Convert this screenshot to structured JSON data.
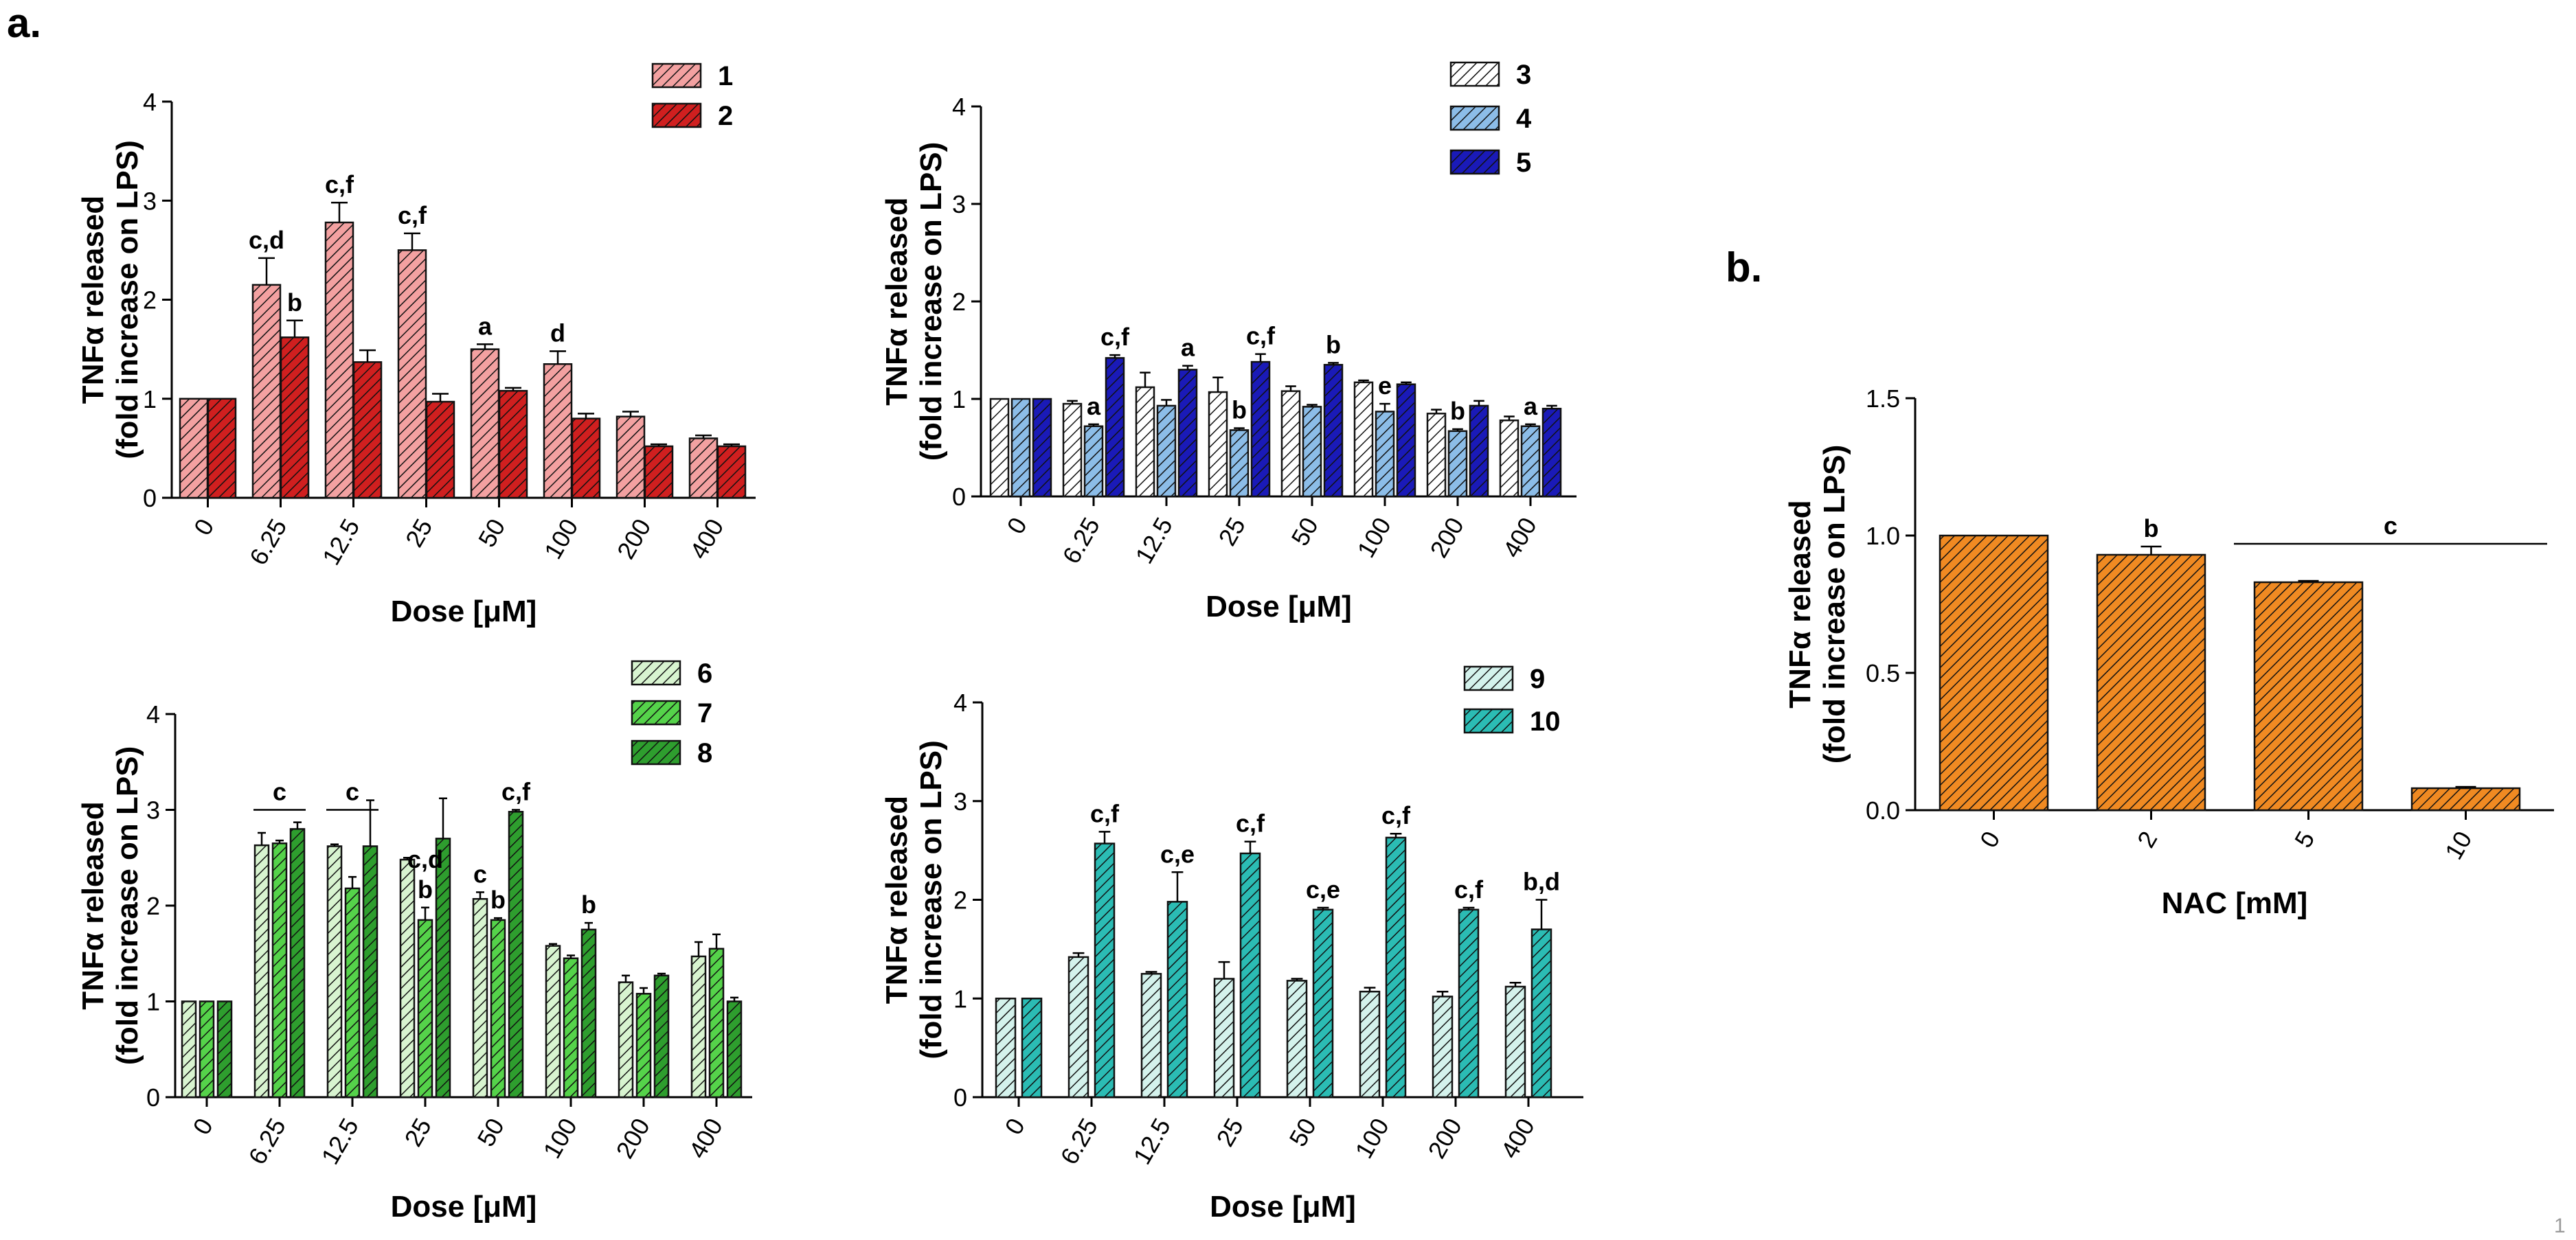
{
  "figure": {
    "panel_a_label": "a.",
    "panel_b_label": "b.",
    "page_number": "1",
    "colors": {
      "c1": "#f3a1a1",
      "c2": "#d01f1f",
      "c3": "#ffffff",
      "c4": "#8cbde8",
      "c5": "#1a1ab8",
      "c6": "#d8f4d0",
      "c7": "#55d34a",
      "c8": "#2e9e2e",
      "c9": "#d4f2ec",
      "c10": "#2bbcb4",
      "nac": "#f08a22"
    }
  },
  "chart_data": [
    {
      "type": "bar",
      "id": "a1",
      "title": "",
      "ylabel_line1": "TNFα released",
      "ylabel_line2": "(fold increase on LPS)",
      "xlabel": "Dose [μM]",
      "ylim": [
        0,
        4
      ],
      "yticks": [
        "0",
        "1",
        "2",
        "3",
        "4"
      ],
      "categories": [
        "0",
        "6.25",
        "12.5",
        "25",
        "50",
        "100",
        "200",
        "400"
      ],
      "series": [
        {
          "name": "1",
          "color": "#f3a1a1",
          "values": [
            1.0,
            2.15,
            2.78,
            2.5,
            1.5,
            1.35,
            0.82,
            0.6
          ],
          "errors": [
            0,
            0.27,
            0.2,
            0.17,
            0.05,
            0.13,
            0.05,
            0.03
          ]
        },
        {
          "name": "2",
          "color": "#d01f1f",
          "values": [
            1.0,
            1.62,
            1.37,
            0.97,
            1.08,
            0.8,
            0.52,
            0.52
          ],
          "errors": [
            0,
            0.17,
            0.12,
            0.08,
            0.03,
            0.05,
            0.02,
            0.02
          ]
        }
      ],
      "annotations": [
        {
          "category": "6.25",
          "series": "1",
          "text": "c,d"
        },
        {
          "category": "6.25",
          "series": "2",
          "text": "b"
        },
        {
          "category": "12.5",
          "series": "1",
          "text": "c,f"
        },
        {
          "category": "25",
          "series": "1",
          "text": "c,f"
        },
        {
          "category": "50",
          "series": "1",
          "text": "a"
        },
        {
          "category": "100",
          "series": "1",
          "text": "d"
        }
      ],
      "brackets": []
    },
    {
      "type": "bar",
      "id": "a2",
      "title": "",
      "ylabel_line1": "TNFα released",
      "ylabel_line2": "(fold increase on LPS)",
      "xlabel": "Dose [μM]",
      "ylim": [
        0,
        4
      ],
      "yticks": [
        "0",
        "1",
        "2",
        "3",
        "4"
      ],
      "categories": [
        "0",
        "6.25",
        "12.5",
        "25",
        "50",
        "100",
        "200",
        "400"
      ],
      "series": [
        {
          "name": "3",
          "color": "#ffffff",
          "values": [
            1.0,
            0.95,
            1.12,
            1.07,
            1.08,
            1.17,
            0.85,
            0.78
          ],
          "errors": [
            0,
            0.03,
            0.15,
            0.15,
            0.05,
            0.02,
            0.04,
            0.04
          ]
        },
        {
          "name": "4",
          "color": "#8cbde8",
          "values": [
            1.0,
            0.72,
            0.93,
            0.68,
            0.92,
            0.87,
            0.67,
            0.72
          ],
          "errors": [
            0,
            0.02,
            0.06,
            0.02,
            0.02,
            0.08,
            0.02,
            0.02
          ]
        },
        {
          "name": "5",
          "color": "#1a1ab8",
          "values": [
            1.0,
            1.42,
            1.3,
            1.38,
            1.35,
            1.15,
            0.93,
            0.9
          ],
          "errors": [
            0,
            0.03,
            0.04,
            0.08,
            0.02,
            0.02,
            0.05,
            0.03
          ]
        }
      ],
      "annotations": [
        {
          "category": "6.25",
          "series": "4",
          "text": "a"
        },
        {
          "category": "6.25",
          "series": "5",
          "text": "c,f"
        },
        {
          "category": "12.5",
          "series": "5",
          "text": "a"
        },
        {
          "category": "25",
          "series": "4",
          "text": "b"
        },
        {
          "category": "25",
          "series": "5",
          "text": "c,f"
        },
        {
          "category": "50",
          "series": "5",
          "text": "b"
        },
        {
          "category": "100",
          "series": "4",
          "text": "e"
        },
        {
          "category": "200",
          "series": "4",
          "text": "b"
        },
        {
          "category": "400",
          "series": "4",
          "text": "a"
        }
      ],
      "brackets": []
    },
    {
      "type": "bar",
      "id": "a3",
      "title": "",
      "ylabel_line1": "TNFα released",
      "ylabel_line2": "(fold increase on LPS)",
      "xlabel": "Dose [μM]",
      "ylim": [
        0,
        4
      ],
      "yticks": [
        "0",
        "1",
        "2",
        "3",
        "4"
      ],
      "categories": [
        "0",
        "6.25",
        "12.5",
        "25",
        "50",
        "100",
        "200",
        "400"
      ],
      "series": [
        {
          "name": "6",
          "color": "#d8f4d0",
          "values": [
            1.0,
            2.63,
            2.62,
            2.48,
            2.07,
            1.58,
            1.2,
            1.47
          ],
          "errors": [
            0,
            0.13,
            0.02,
            0.02,
            0.07,
            0.02,
            0.07,
            0.15
          ]
        },
        {
          "name": "7",
          "color": "#55d34a",
          "values": [
            1.0,
            2.65,
            2.18,
            1.85,
            1.85,
            1.45,
            1.08,
            1.55
          ],
          "errors": [
            0,
            0.03,
            0.12,
            0.13,
            0.02,
            0.03,
            0.06,
            0.15
          ]
        },
        {
          "name": "8",
          "color": "#2e9e2e",
          "values": [
            1.0,
            2.8,
            2.62,
            2.7,
            2.98,
            1.75,
            1.27,
            1.0
          ],
          "errors": [
            0,
            0.07,
            0.48,
            0.42,
            0.02,
            0.07,
            0.02,
            0.04
          ]
        }
      ],
      "annotations": [
        {
          "category": "25",
          "series": "7",
          "text": "b"
        },
        {
          "category": "25",
          "series": "7",
          "text": "c,d"
        },
        {
          "category": "50",
          "series": "6",
          "text": "c"
        },
        {
          "category": "50",
          "series": "7",
          "text": "b"
        },
        {
          "category": "50",
          "series": "8",
          "text": "c,f"
        },
        {
          "category": "100",
          "series": "8",
          "text": "b"
        }
      ],
      "brackets": [
        {
          "category": "6.25",
          "text": "c"
        },
        {
          "category": "12.5",
          "text": "c"
        }
      ]
    },
    {
      "type": "bar",
      "id": "a4",
      "title": "",
      "ylabel_line1": "TNFα released",
      "ylabel_line2": "(fold increase on LPS)",
      "xlabel": "Dose [μM]",
      "ylim": [
        0,
        4
      ],
      "yticks": [
        "0",
        "1",
        "2",
        "3",
        "4"
      ],
      "categories": [
        "0",
        "6.25",
        "12.5",
        "25",
        "50",
        "100",
        "200",
        "400"
      ],
      "series": [
        {
          "name": "9",
          "color": "#d4f2ec",
          "values": [
            1.0,
            1.42,
            1.25,
            1.2,
            1.18,
            1.07,
            1.02,
            1.12
          ],
          "errors": [
            0,
            0.04,
            0.02,
            0.17,
            0.02,
            0.04,
            0.05,
            0.04
          ]
        },
        {
          "name": "10",
          "color": "#2bbcb4",
          "values": [
            1.0,
            2.57,
            1.98,
            2.47,
            1.9,
            2.63,
            1.9,
            1.7
          ],
          "errors": [
            0,
            0.12,
            0.3,
            0.12,
            0.02,
            0.04,
            0.02,
            0.3
          ]
        }
      ],
      "annotations": [
        {
          "category": "6.25",
          "series": "10",
          "text": "c,f"
        },
        {
          "category": "12.5",
          "series": "10",
          "text": "c,e"
        },
        {
          "category": "25",
          "series": "10",
          "text": "c,f"
        },
        {
          "category": "50",
          "series": "10",
          "text": "c,e"
        },
        {
          "category": "100",
          "series": "10",
          "text": "c,f"
        },
        {
          "category": "200",
          "series": "10",
          "text": "c,f"
        },
        {
          "category": "400",
          "series": "10",
          "text": "b,d"
        }
      ],
      "brackets": []
    },
    {
      "type": "bar",
      "id": "b",
      "title": "",
      "ylabel_line1": "TNFα released",
      "ylabel_line2": "(fold increase on LPS)",
      "xlabel": "NAC [mM]",
      "ylim": [
        0,
        1.5
      ],
      "yticks": [
        "0.0",
        "0.5",
        "1.0",
        "1.5"
      ],
      "categories": [
        "0",
        "2",
        "5",
        "10"
      ],
      "series": [
        {
          "name": "NAC",
          "color": "#f08a22",
          "values": [
            1.0,
            0.93,
            0.83,
            0.08
          ],
          "errors": [
            0,
            0.03,
            0.005,
            0.005
          ]
        }
      ],
      "annotations": [
        {
          "category": "2",
          "series": "NAC",
          "text": "b"
        }
      ],
      "brackets": [
        {
          "from": "5",
          "to": "10",
          "text": "c"
        }
      ]
    }
  ]
}
